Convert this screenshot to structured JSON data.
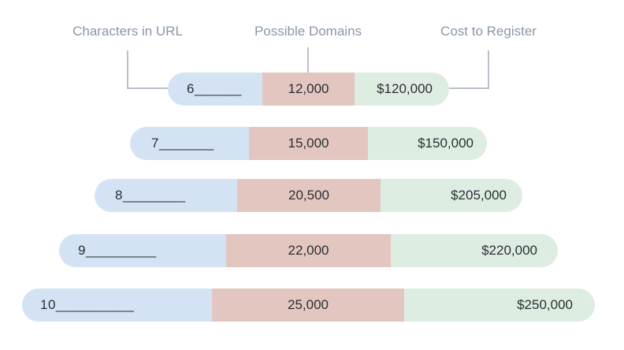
{
  "headers": {
    "characters": "Characters in URL",
    "domains": "Possible Domains",
    "cost": "Cost to Register"
  },
  "rows": [
    {
      "characters": "6______",
      "domains": "12,000",
      "cost": "$120,000"
    },
    {
      "characters": "7_______",
      "domains": "15,000",
      "cost": "$150,000"
    },
    {
      "characters": "8________",
      "domains": "20,500",
      "cost": "$205,000"
    },
    {
      "characters": "9_________",
      "domains": "22,000",
      "cost": "$220,000"
    },
    {
      "characters": "10__________",
      "domains": "25,000",
      "cost": "$250,000"
    }
  ],
  "colors": {
    "characters_segment": "#d3e3f4",
    "domains_segment": "#e3c6c0",
    "cost_segment": "#deede2",
    "header_text": "#8a97a6",
    "connector": "#b9c1cb"
  }
}
